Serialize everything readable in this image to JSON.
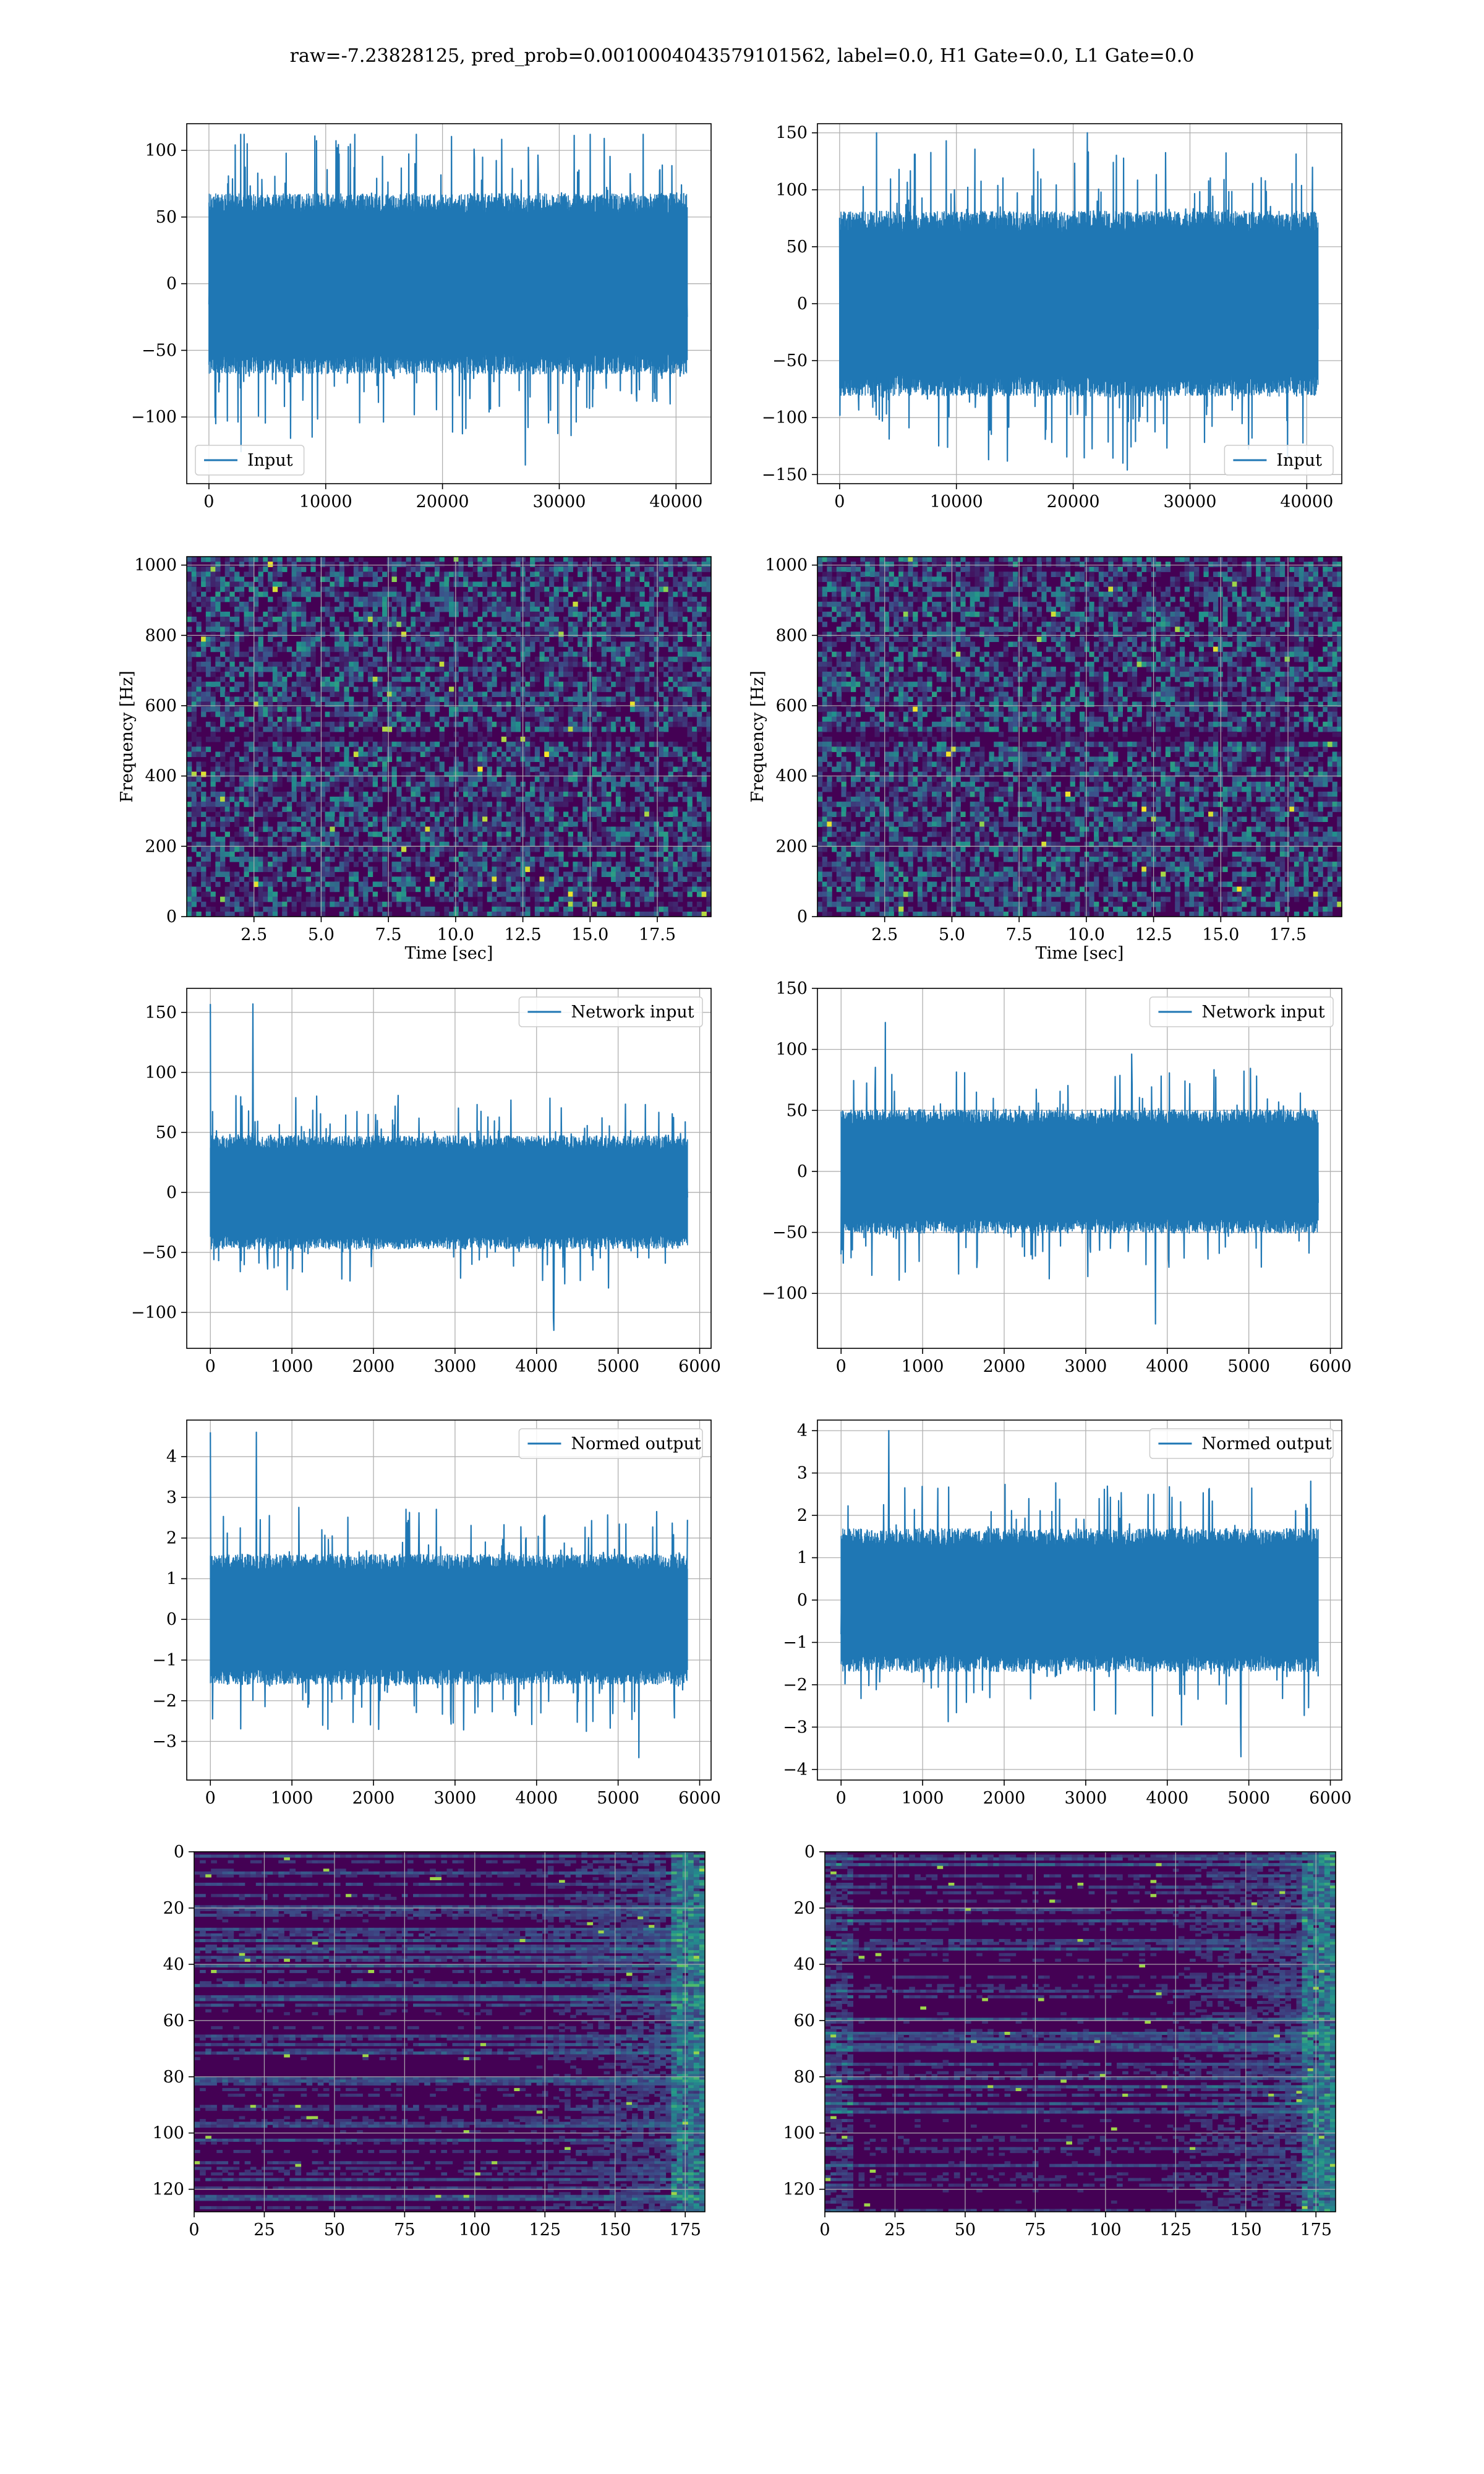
{
  "figure": {
    "suptitle": "raw=-7.23828125, pred_prob=0.0010004043579101562, label=0.0, H1 Gate=0.0, L1 Gate=0.0"
  },
  "colors": {
    "line": "#1f77b4",
    "grid": "#b0b0b0",
    "viridis_dark": "#440154",
    "viridis_mid": "#31688e",
    "viridis_teal": "#21918c",
    "viridis_green": "#5ec962",
    "viridis_yellow": "#fde725"
  },
  "chart_data": [
    {
      "id": "input-h1",
      "type": "line",
      "legend": {
        "label": "Input",
        "placement": "lower-left"
      },
      "xlim": [
        -1900,
        43000
      ],
      "ylim": [
        -150,
        120
      ],
      "xticks": [
        0,
        10000,
        20000,
        30000,
        40000
      ],
      "yticks": [
        -100,
        -50,
        0,
        50,
        100
      ],
      "grid": true,
      "signal": {
        "x_start": 0,
        "x_end": 40960,
        "samples": 1400,
        "amplitude": 40,
        "max": 112,
        "min": -136
      }
    },
    {
      "id": "input-l1",
      "type": "line",
      "legend": {
        "label": "Input",
        "placement": "lower-right"
      },
      "xlim": [
        -1900,
        43000
      ],
      "ylim": [
        -158,
        158
      ],
      "xticks": [
        0,
        10000,
        20000,
        30000,
        40000
      ],
      "yticks": [
        -150,
        -100,
        -50,
        0,
        50,
        100,
        150
      ],
      "grid": true,
      "signal": {
        "x_start": 0,
        "x_end": 40960,
        "samples": 1400,
        "amplitude": 48,
        "max": 150,
        "min": -146
      }
    },
    {
      "id": "spec-h1",
      "type": "heatmap",
      "xlabel": "Time [sec]",
      "ylabel": "Frequency [Hz]",
      "xlim": [
        0,
        19.5
      ],
      "ylim": [
        0,
        1024
      ],
      "xticks": [
        2.5,
        5.0,
        7.5,
        10.0,
        12.5,
        15.0,
        17.5
      ],
      "yticks": [
        0,
        200,
        400,
        600,
        800,
        1000
      ],
      "grid": true
    },
    {
      "id": "spec-l1",
      "type": "heatmap",
      "xlabel": "Time [sec]",
      "ylabel": "Frequency [Hz]",
      "xlim": [
        0,
        19.5
      ],
      "ylim": [
        0,
        1024
      ],
      "xticks": [
        2.5,
        5.0,
        7.5,
        10.0,
        12.5,
        15.0,
        17.5
      ],
      "yticks": [
        0,
        200,
        400,
        600,
        800,
        1000
      ],
      "grid": true
    },
    {
      "id": "network-h1",
      "type": "line",
      "legend": {
        "label": "Network input",
        "placement": "upper-right"
      },
      "xlim": [
        -290,
        6140
      ],
      "ylim": [
        -130,
        170
      ],
      "xticks": [
        0,
        1000,
        2000,
        3000,
        4000,
        5000,
        6000
      ],
      "yticks": [
        -100,
        -50,
        0,
        50,
        100,
        150
      ],
      "grid": true,
      "signal": {
        "x_start": 0,
        "x_end": 5850,
        "samples": 1100,
        "amplitude": 28,
        "max": 157,
        "min": -115
      }
    },
    {
      "id": "network-l1",
      "type": "line",
      "legend": {
        "label": "Network input",
        "placement": "upper-right"
      },
      "xlim": [
        -290,
        6140
      ],
      "ylim": [
        -145,
        150
      ],
      "xticks": [
        0,
        1000,
        2000,
        3000,
        4000,
        5000,
        6000
      ],
      "yticks": [
        -100,
        -50,
        0,
        50,
        100,
        150
      ],
      "grid": true,
      "signal": {
        "x_start": 0,
        "x_end": 5850,
        "samples": 1100,
        "amplitude": 30,
        "max": 122,
        "min": -125
      }
    },
    {
      "id": "normed-h1",
      "type": "line",
      "legend": {
        "label": "Normed output",
        "placement": "upper-right"
      },
      "xlim": [
        -290,
        6140
      ],
      "ylim": [
        -3.95,
        4.9
      ],
      "xticks": [
        0,
        1000,
        2000,
        3000,
        4000,
        5000,
        6000
      ],
      "yticks": [
        -3,
        -2,
        -1,
        0,
        1,
        2,
        3,
        4
      ],
      "grid": true,
      "signal": {
        "x_start": 0,
        "x_end": 5850,
        "samples": 1100,
        "amplitude": 0.95,
        "max": 4.6,
        "min": -3.4
      }
    },
    {
      "id": "normed-l1",
      "type": "line",
      "legend": {
        "label": "Normed output",
        "placement": "upper-right"
      },
      "xlim": [
        -290,
        6140
      ],
      "ylim": [
        -4.25,
        4.25
      ],
      "xticks": [
        0,
        1000,
        2000,
        3000,
        4000,
        5000,
        6000
      ],
      "yticks": [
        -4,
        -3,
        -2,
        -1,
        0,
        1,
        2,
        3,
        4
      ],
      "grid": true,
      "signal": {
        "x_start": 0,
        "x_end": 5850,
        "samples": 1100,
        "amplitude": 1.0,
        "max": 4.0,
        "min": -3.7
      }
    },
    {
      "id": "features-h1",
      "type": "heatmap",
      "xlim": [
        0,
        182
      ],
      "ylim": [
        128,
        0
      ],
      "xticks": [
        0,
        25,
        50,
        75,
        100,
        125,
        150,
        175
      ],
      "yticks": [
        0,
        20,
        40,
        60,
        80,
        100,
        120
      ],
      "grid": true
    },
    {
      "id": "features-l1",
      "type": "heatmap",
      "xlim": [
        0,
        182
      ],
      "ylim": [
        128,
        0
      ],
      "xticks": [
        0,
        25,
        50,
        75,
        100,
        125,
        150,
        175
      ],
      "yticks": [
        0,
        20,
        40,
        60,
        80,
        100,
        120
      ],
      "grid": true
    }
  ]
}
